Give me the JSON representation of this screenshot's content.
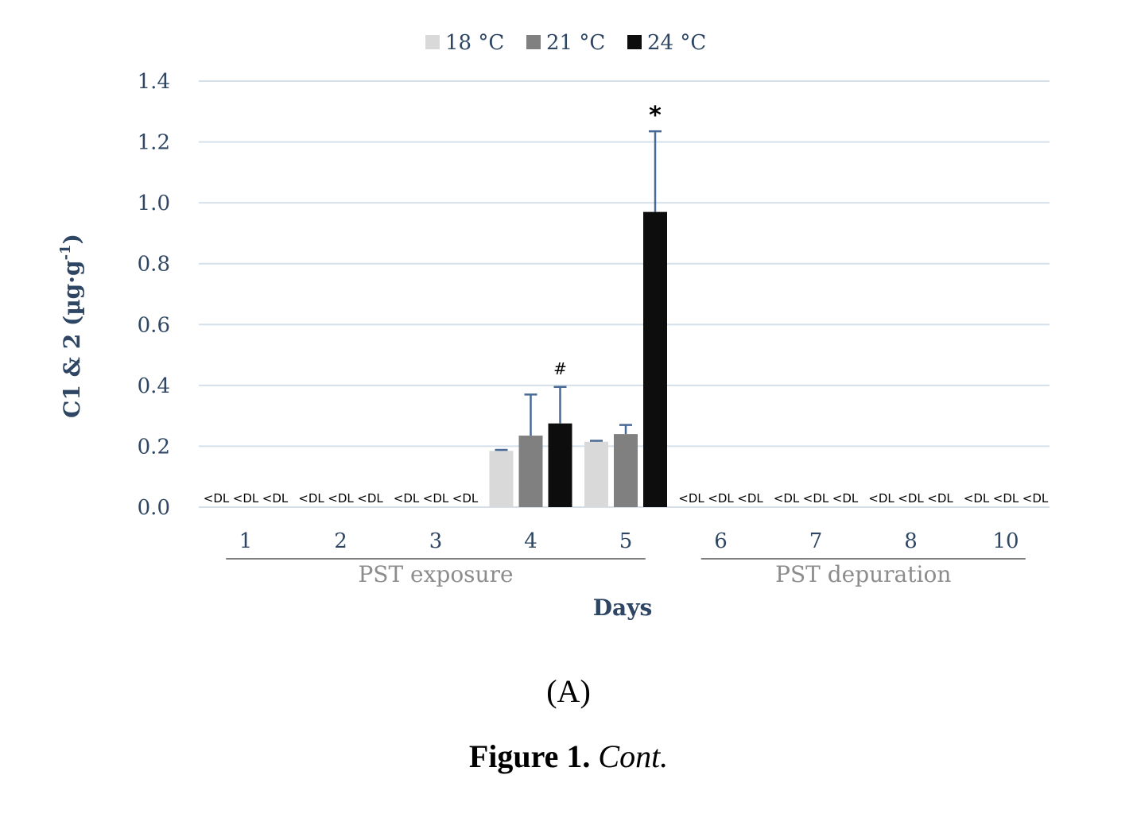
{
  "chart_data": {
    "type": "bar",
    "ylabel": "C1 & 2 (µg·g",
    "ylabel_superscript": "-1",
    "ylabel_close": ")",
    "xlabel": "Days",
    "ylim": [
      0,
      1.4
    ],
    "yticks": [
      "0.0",
      "0.2",
      "0.4",
      "0.6",
      "0.8",
      "1.0",
      "1.2",
      "1.4"
    ],
    "grid": true,
    "legend_position": "top-center",
    "categories": [
      "1",
      "2",
      "3",
      "4",
      "5",
      "6",
      "7",
      "8",
      "10"
    ],
    "series": [
      {
        "name": "18 °C",
        "color": "#d9d9d9",
        "values": [
          null,
          null,
          null,
          0.185,
          0.215,
          null,
          null,
          null,
          null
        ],
        "errors": [
          null,
          null,
          null,
          0.003,
          0.003,
          null,
          null,
          null,
          null
        ]
      },
      {
        "name": "21 °C",
        "color": "#808080",
        "values": [
          null,
          null,
          null,
          0.235,
          0.24,
          null,
          null,
          null,
          null
        ],
        "errors": [
          null,
          null,
          null,
          0.135,
          0.03,
          null,
          null,
          null,
          null
        ]
      },
      {
        "name": "24 °C",
        "color": "#0d0d0d",
        "values": [
          null,
          null,
          null,
          0.275,
          0.97,
          null,
          null,
          null,
          null
        ],
        "errors": [
          null,
          null,
          null,
          0.12,
          0.265,
          null,
          null,
          null,
          null
        ]
      }
    ],
    "below_detection_label": "<DL",
    "annotations": [
      {
        "text": "#",
        "category": "4",
        "series": "24 °C"
      },
      {
        "text": "*",
        "category": "5",
        "series": "24 °C"
      }
    ],
    "groups": [
      {
        "label": "PST exposure",
        "categories": [
          "1",
          "2",
          "3",
          "4",
          "5"
        ]
      },
      {
        "label": "PST depuration",
        "categories": [
          "6",
          "7",
          "8",
          "10"
        ]
      }
    ]
  },
  "captions": {
    "panel": "(A)",
    "figure_label": "Figure 1.",
    "figure_cont": "Cont."
  }
}
